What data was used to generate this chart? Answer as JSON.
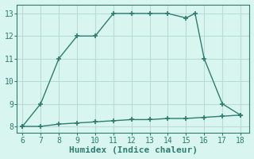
{
  "x_upper": [
    6,
    7,
    8,
    9,
    10,
    11,
    12,
    13,
    14,
    15,
    15.5,
    16,
    17,
    18
  ],
  "y_upper": [
    8,
    9,
    11,
    12,
    12,
    13,
    13,
    13,
    13,
    12.8,
    13,
    11,
    9,
    8.5
  ],
  "x_lower": [
    6,
    7,
    8,
    9,
    10,
    11,
    12,
    13,
    14,
    15,
    16,
    17,
    18
  ],
  "y_lower": [
    8,
    8,
    8.1,
    8.15,
    8.2,
    8.25,
    8.3,
    8.3,
    8.35,
    8.35,
    8.4,
    8.45,
    8.5
  ],
  "line_color": "#2e7d6e",
  "marker": "+",
  "markersize": 4,
  "markeredgewidth": 1.2,
  "linewidth": 1.0,
  "background_color": "#d8f5f0",
  "grid_color": "#b8ddd8",
  "xlabel": "Humidex (Indice chaleur)",
  "xlabel_fontsize": 8,
  "tick_fontsize": 7,
  "xlim": [
    5.7,
    18.5
  ],
  "ylim": [
    7.7,
    13.4
  ],
  "xticks": [
    6,
    7,
    8,
    9,
    10,
    11,
    12,
    13,
    14,
    15,
    16,
    17,
    18
  ],
  "yticks": [
    8,
    9,
    10,
    11,
    12,
    13
  ]
}
